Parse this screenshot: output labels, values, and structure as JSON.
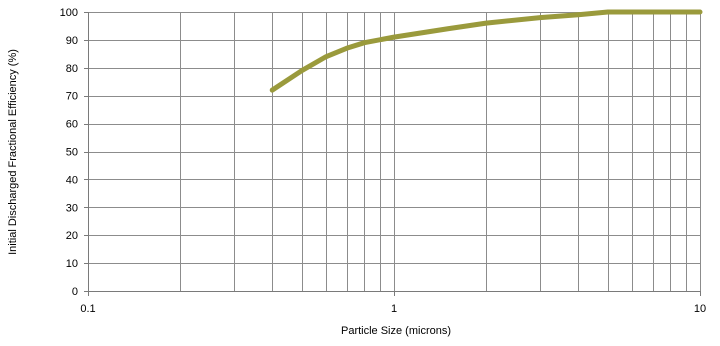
{
  "chart_data": {
    "type": "line",
    "x_scale": "log",
    "xlim": [
      0.1,
      10
    ],
    "ylim": [
      0,
      100
    ],
    "x_ticks": [
      "0.1",
      "1",
      "10"
    ],
    "y_ticks": [
      "0",
      "10",
      "20",
      "30",
      "40",
      "50",
      "60",
      "70",
      "80",
      "90",
      "100"
    ],
    "xlabel": "Particle Size (microns)",
    "ylabel": "Initial Discharged Fractional Efficiency (%)",
    "grid": true,
    "legend": "none",
    "series": [
      {
        "color": "#9a9a3c",
        "x": [
          0.4,
          0.5,
          0.6,
          0.7,
          0.8,
          1.0,
          1.5,
          2,
          3,
          4,
          5,
          6,
          8,
          10
        ],
        "y": [
          72,
          79,
          84,
          87,
          89,
          91,
          94,
          96,
          98,
          99,
          100,
          100,
          100,
          100
        ]
      }
    ]
  }
}
